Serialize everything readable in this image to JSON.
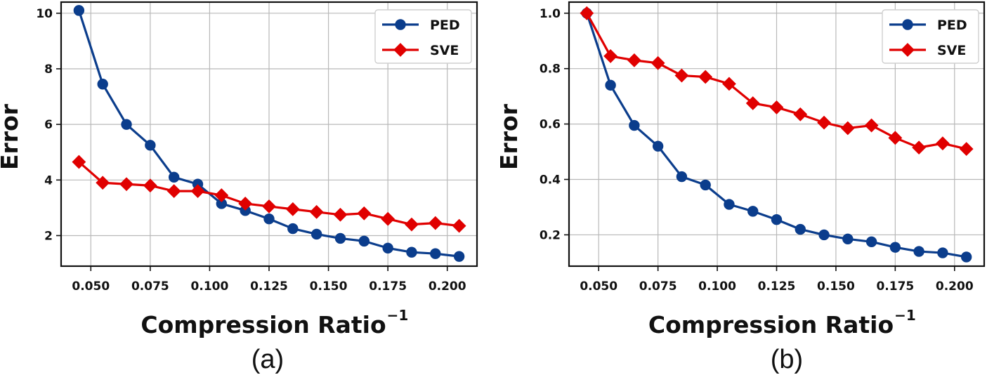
{
  "chart_data": [
    {
      "type": "line",
      "caption": "(a)",
      "xlabel": "Compression Ratio",
      "xlabel_sup": "−1",
      "ylabel": "Error",
      "xlim": [
        0.0375,
        0.2125
      ],
      "ylim": [
        0.9,
        10.4
      ],
      "xticks": [
        0.05,
        0.075,
        0.1,
        0.125,
        0.15,
        0.175,
        0.2
      ],
      "xtick_labels": [
        "0.050",
        "0.075",
        "0.100",
        "0.125",
        "0.150",
        "0.175",
        "0.200"
      ],
      "yticks": [
        2,
        4,
        6,
        8,
        10
      ],
      "ytick_labels": [
        "2",
        "4",
        "6",
        "8",
        "10"
      ],
      "grid": true,
      "legend_position": "top-right",
      "x": [
        0.045,
        0.055,
        0.065,
        0.075,
        0.085,
        0.095,
        0.105,
        0.115,
        0.125,
        0.135,
        0.145,
        0.155,
        0.165,
        0.175,
        0.185,
        0.195,
        0.205
      ],
      "series": [
        {
          "name": "PED",
          "marker": "circle",
          "color": "#0b3d8c",
          "values": [
            10.1,
            7.45,
            6.0,
            5.25,
            4.1,
            3.85,
            3.15,
            2.9,
            2.6,
            2.25,
            2.05,
            1.9,
            1.8,
            1.55,
            1.4,
            1.35,
            1.25
          ]
        },
        {
          "name": "SVE",
          "marker": "diamond",
          "color": "#e00000",
          "values": [
            4.65,
            3.9,
            3.85,
            3.8,
            3.6,
            3.6,
            3.45,
            3.15,
            3.05,
            2.95,
            2.85,
            2.75,
            2.8,
            2.6,
            2.4,
            2.45,
            2.35
          ]
        }
      ]
    },
    {
      "type": "line",
      "caption": "(b)",
      "xlabel": "Compression Ratio",
      "xlabel_sup": "−1",
      "ylabel": "Error",
      "xlim": [
        0.0375,
        0.2125
      ],
      "ylim": [
        0.087,
        1.04
      ],
      "xticks": [
        0.05,
        0.075,
        0.1,
        0.125,
        0.15,
        0.175,
        0.2
      ],
      "xtick_labels": [
        "0.050",
        "0.075",
        "0.100",
        "0.125",
        "0.150",
        "0.175",
        "0.200"
      ],
      "yticks": [
        0.2,
        0.4,
        0.6,
        0.8,
        1.0
      ],
      "ytick_labels": [
        "0.2",
        "0.4",
        "0.6",
        "0.8",
        "1.0"
      ],
      "grid": true,
      "legend_position": "top-right",
      "x": [
        0.045,
        0.055,
        0.065,
        0.075,
        0.085,
        0.095,
        0.105,
        0.115,
        0.125,
        0.135,
        0.145,
        0.155,
        0.165,
        0.175,
        0.185,
        0.195,
        0.205
      ],
      "series": [
        {
          "name": "PED",
          "marker": "circle",
          "color": "#0b3d8c",
          "values": [
            1.0,
            0.74,
            0.595,
            0.52,
            0.41,
            0.38,
            0.31,
            0.285,
            0.255,
            0.22,
            0.2,
            0.185,
            0.175,
            0.155,
            0.14,
            0.135,
            0.12
          ]
        },
        {
          "name": "SVE",
          "marker": "diamond",
          "color": "#e00000",
          "values": [
            1.0,
            0.845,
            0.83,
            0.82,
            0.775,
            0.77,
            0.745,
            0.675,
            0.66,
            0.635,
            0.605,
            0.585,
            0.595,
            0.55,
            0.515,
            0.53,
            0.51
          ]
        }
      ]
    }
  ]
}
